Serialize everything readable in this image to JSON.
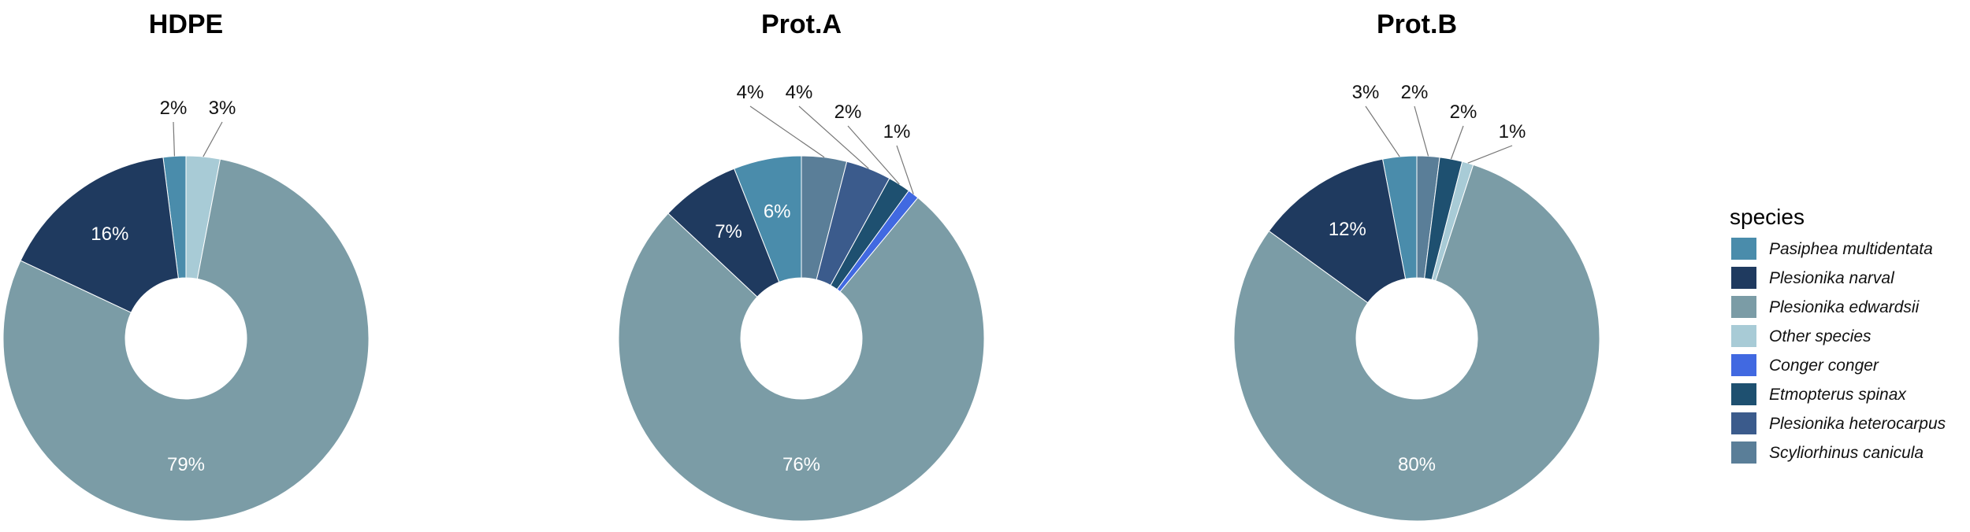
{
  "chart_data": [
    {
      "type": "pie",
      "title": "HDPE",
      "slices": [
        {
          "species": "Pasiphea multidentata",
          "value": 2,
          "label": "2%",
          "label_pos": "outside"
        },
        {
          "species": "Plesionika narval",
          "value": 16,
          "label": "16%",
          "label_pos": "inside"
        },
        {
          "species": "Plesionika edwardsii",
          "value": 79,
          "label": "79%",
          "label_pos": "inside"
        },
        {
          "species": "Other species",
          "value": 3,
          "label": "3%",
          "label_pos": "outside"
        }
      ]
    },
    {
      "type": "pie",
      "title": "Prot.A",
      "slices": [
        {
          "species": "Pasiphea multidentata",
          "value": 6,
          "label": "6%",
          "label_pos": "inside"
        },
        {
          "species": "Plesionika narval",
          "value": 7,
          "label": "7%",
          "label_pos": "inside"
        },
        {
          "species": "Plesionika edwardsii",
          "value": 76,
          "label": "76%",
          "label_pos": "inside"
        },
        {
          "species": "Conger conger",
          "value": 1,
          "label": "1%",
          "label_pos": "outside"
        },
        {
          "species": "Etmopterus spinax",
          "value": 2,
          "label": "2%",
          "label_pos": "outside"
        },
        {
          "species": "Plesionika heterocarpus",
          "value": 4,
          "label": "4%",
          "label_pos": "outside"
        },
        {
          "species": "Scyliorhinus canicula",
          "value": 4,
          "label": "4%",
          "label_pos": "outside"
        }
      ]
    },
    {
      "type": "pie",
      "title": "Prot.B",
      "slices": [
        {
          "species": "Pasiphea multidentata",
          "value": 3,
          "label": "3%",
          "label_pos": "outside"
        },
        {
          "species": "Plesionika narval",
          "value": 12,
          "label": "12%",
          "label_pos": "inside"
        },
        {
          "species": "Plesionika edwardsii",
          "value": 80,
          "label": "80%",
          "label_pos": "inside"
        },
        {
          "species": "Other species",
          "value": 1,
          "label": "1%",
          "label_pos": "outside"
        },
        {
          "species": "Etmopterus spinax",
          "value": 2,
          "label": "2%",
          "label_pos": "outside"
        },
        {
          "species": "Scyliorhinus canicula",
          "value": 2,
          "label": "2%",
          "label_pos": "outside"
        }
      ]
    }
  ],
  "legend": {
    "title": "species",
    "placement": "right",
    "items": [
      {
        "name": "Pasiphea multidentata",
        "color": "#4A8CAB"
      },
      {
        "name": "Plesionika narval",
        "color": "#1F3A5F"
      },
      {
        "name": "Plesionika edwardsii",
        "color": "#7B9CA6"
      },
      {
        "name": "Other species",
        "color": "#A8CBD6"
      },
      {
        "name": "Conger conger",
        "color": "#4169E1"
      },
      {
        "name": "Etmopterus spinax",
        "color": "#1E5070"
      },
      {
        "name": "Plesionika heterocarpus",
        "color": "#3B5B8C"
      },
      {
        "name": "Scyliorhinus canicula",
        "color": "#5A7E98"
      }
    ]
  }
}
